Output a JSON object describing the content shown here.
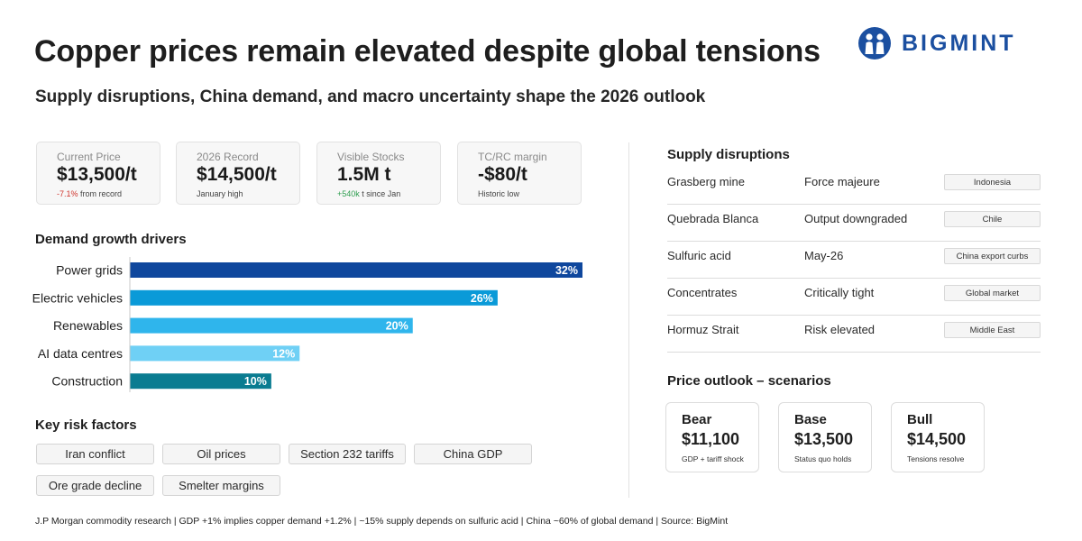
{
  "header": {
    "title": "Copper prices remain elevated despite global tensions",
    "subtitle": "Supply disruptions, China demand, and macro uncertainty shape the 2026 outlook",
    "logo_text": "BIGMINT"
  },
  "colors": {
    "brand": "#1b4fa0",
    "negative": "#d0342c",
    "positive": "#2e9e4f"
  },
  "stats": [
    {
      "label": "Current Price",
      "value": "$13,500/t",
      "note_highlight": "-7.1%",
      "note_text": " from record"
    },
    {
      "label": "2026 Record",
      "value": "$14,500/t",
      "note_highlight": "",
      "note_text": "January high"
    },
    {
      "label": "Visible Stocks",
      "value": "1.5M t",
      "note_highlight": "+540k",
      "note_text": " t since Jan"
    },
    {
      "label": "TC/RC margin",
      "value": "-$80/t",
      "note_highlight": "",
      "note_text": "Historic low"
    }
  ],
  "demand_title": "Demand growth drivers",
  "chart_data": {
    "type": "bar",
    "orientation": "horizontal",
    "categories": [
      "Power grids",
      "Electric vehicles",
      "Renewables",
      "AI data centres",
      "Construction"
    ],
    "values": [
      32,
      26,
      20,
      12,
      10
    ],
    "value_labels": [
      "32%",
      "26%",
      "20%",
      "12%",
      "10%"
    ],
    "bar_colors": [
      "#0f479d",
      "#0a9ad8",
      "#2fb5ec",
      "#6fd0f5",
      "#0a7c91"
    ],
    "xlim": [
      0,
      32
    ],
    "grid": false,
    "legend": "none"
  },
  "risk_title": "Key risk factors",
  "risks": [
    "Iran conflict",
    "Oil prices",
    "Section 232 tariffs",
    "China GDP",
    "Ore grade decline",
    "Smelter margins"
  ],
  "supply_title": "Supply disruptions",
  "supply_rows": [
    {
      "name": "Grasberg mine",
      "status": "Force majeure",
      "region": "Indonesia"
    },
    {
      "name": "Quebrada Blanca",
      "status": "Output downgraded",
      "region": "Chile"
    },
    {
      "name": "Sulfuric acid",
      "status": "May-26",
      "region": "China export curbs"
    },
    {
      "name": "Concentrates",
      "status": "Critically tight",
      "region": "Global market"
    },
    {
      "name": "Hormuz Strait",
      "status": "Risk elevated",
      "region": "Middle East"
    }
  ],
  "scenario_title": "Price outlook – scenarios",
  "scenarios": [
    {
      "name": "Bear",
      "value": "$11,100",
      "note": "GDP + tariff shock"
    },
    {
      "name": "Base",
      "value": "$13,500",
      "note": "Status quo holds"
    },
    {
      "name": "Bull",
      "value": "$14,500",
      "note": "Tensions resolve"
    }
  ],
  "footer": "J.P Morgan commodity research | GDP +1% implies copper demand +1.2% | ~15% supply depends on sulfuric acid | China ~60% of global demand | Source: BigMint"
}
